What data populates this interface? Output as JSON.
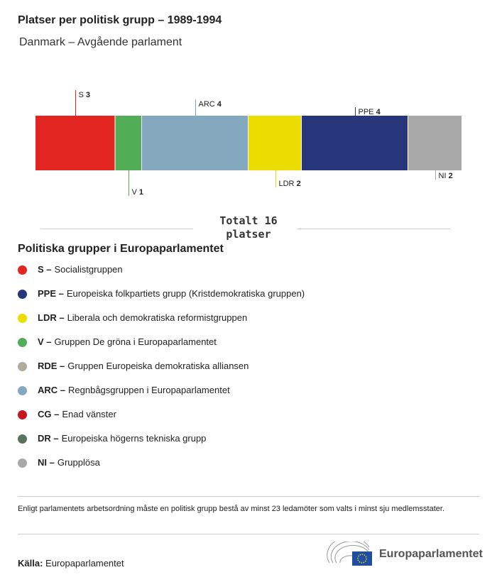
{
  "title": "Platser per politisk grupp – 1989-1994",
  "subtitle": "Danmark – Avgående parlament",
  "chart_data": {
    "type": "bar",
    "orientation": "stacked-horizontal",
    "categories": [
      "S",
      "V",
      "ARC",
      "LDR",
      "PPE",
      "NI"
    ],
    "values": [
      3,
      1,
      4,
      2,
      4,
      2
    ],
    "colors": [
      "#e32521",
      "#52ad57",
      "#84a9bf",
      "#ebdd00",
      "#27357a",
      "#a8a8a8"
    ],
    "total": 16
  },
  "total_label_line1": "Totalt 16",
  "total_label_line2": "platser",
  "legend_title": "Politiska grupper i Europaparlamentet",
  "legend": [
    {
      "abbr": "S –",
      "name": "Socialistgruppen",
      "color": "#e32521"
    },
    {
      "abbr": "PPE –",
      "name": "Europeiska folkpartiets grupp (Kristdemokratiska gruppen)",
      "color": "#27357a"
    },
    {
      "abbr": "LDR –",
      "name": "Liberala och demokratiska reformistgruppen",
      "color": "#ebdd00"
    },
    {
      "abbr": "V –",
      "name": "Gruppen De gröna i Europaparlamentet",
      "color": "#52ad57"
    },
    {
      "abbr": "RDE –",
      "name": "Gruppen Europeiska demokratiska alliansen",
      "color": "#b2aa9c"
    },
    {
      "abbr": "ARC –",
      "name": "Regnbågsgruppen i Europaparlamentet",
      "color": "#84a9bf"
    },
    {
      "abbr": "CG –",
      "name": "Enad vänster",
      "color": "#c4161c"
    },
    {
      "abbr": "DR –",
      "name": "Europeiska högerns tekniska grupp",
      "color": "#5a7260"
    },
    {
      "abbr": "NI –",
      "name": "Grupplösa",
      "color": "#a8a8a8"
    }
  ],
  "note": "Enligt parlamentets arbetsordning måste en politisk grupp bestå av minst 23 ledamöter som valts i minst sju medlemsstater.",
  "source_label": "Källa:",
  "source": "Europaparlamentet",
  "logo_text": "Europaparlamentet"
}
